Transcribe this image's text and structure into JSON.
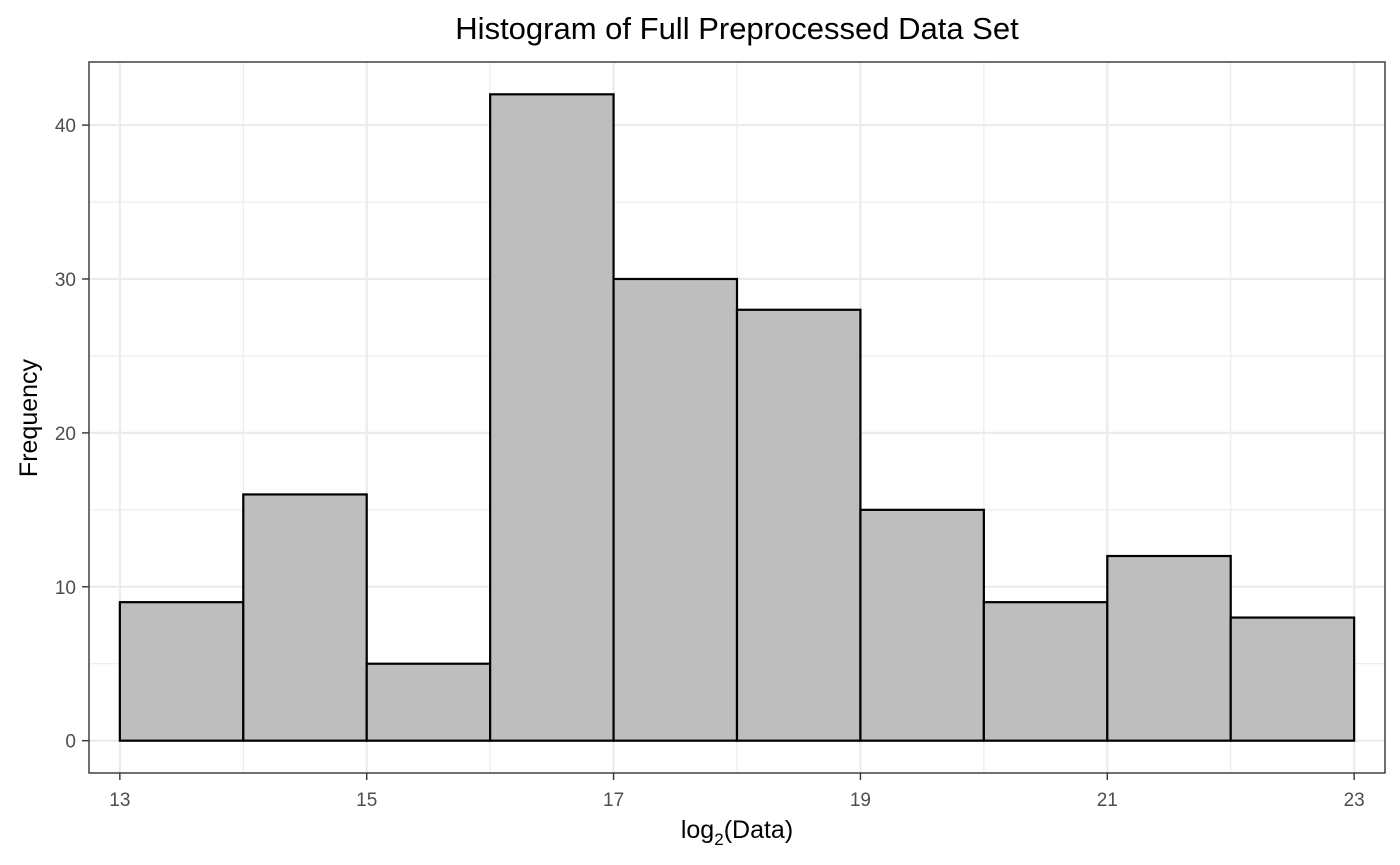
{
  "chart_data": {
    "type": "bar",
    "title": "Histogram of Full Preprocessed Data Set",
    "xlabel_base": "log",
    "xlabel_subscript": "2",
    "xlabel_rest": "(Data)",
    "ylabel": "Frequency",
    "bin_edges": [
      13,
      14,
      15,
      16,
      17,
      18,
      19,
      20,
      21,
      22,
      23
    ],
    "values": [
      9,
      16,
      5,
      42,
      30,
      28,
      15,
      9,
      12,
      8
    ],
    "x_ticks": [
      "13",
      "15",
      "17",
      "19",
      "21",
      "23"
    ],
    "y_ticks": [
      "0",
      "10",
      "20",
      "30",
      "40"
    ],
    "xlim": [
      12.75,
      23.25
    ],
    "ylim": [
      -2.1,
      44.1
    ],
    "grid": true,
    "colors": {
      "bar_fill": "#bebebe",
      "bar_stroke": "#000000",
      "grid": "#ebebeb",
      "tick_text": "#4d4d4d"
    }
  }
}
